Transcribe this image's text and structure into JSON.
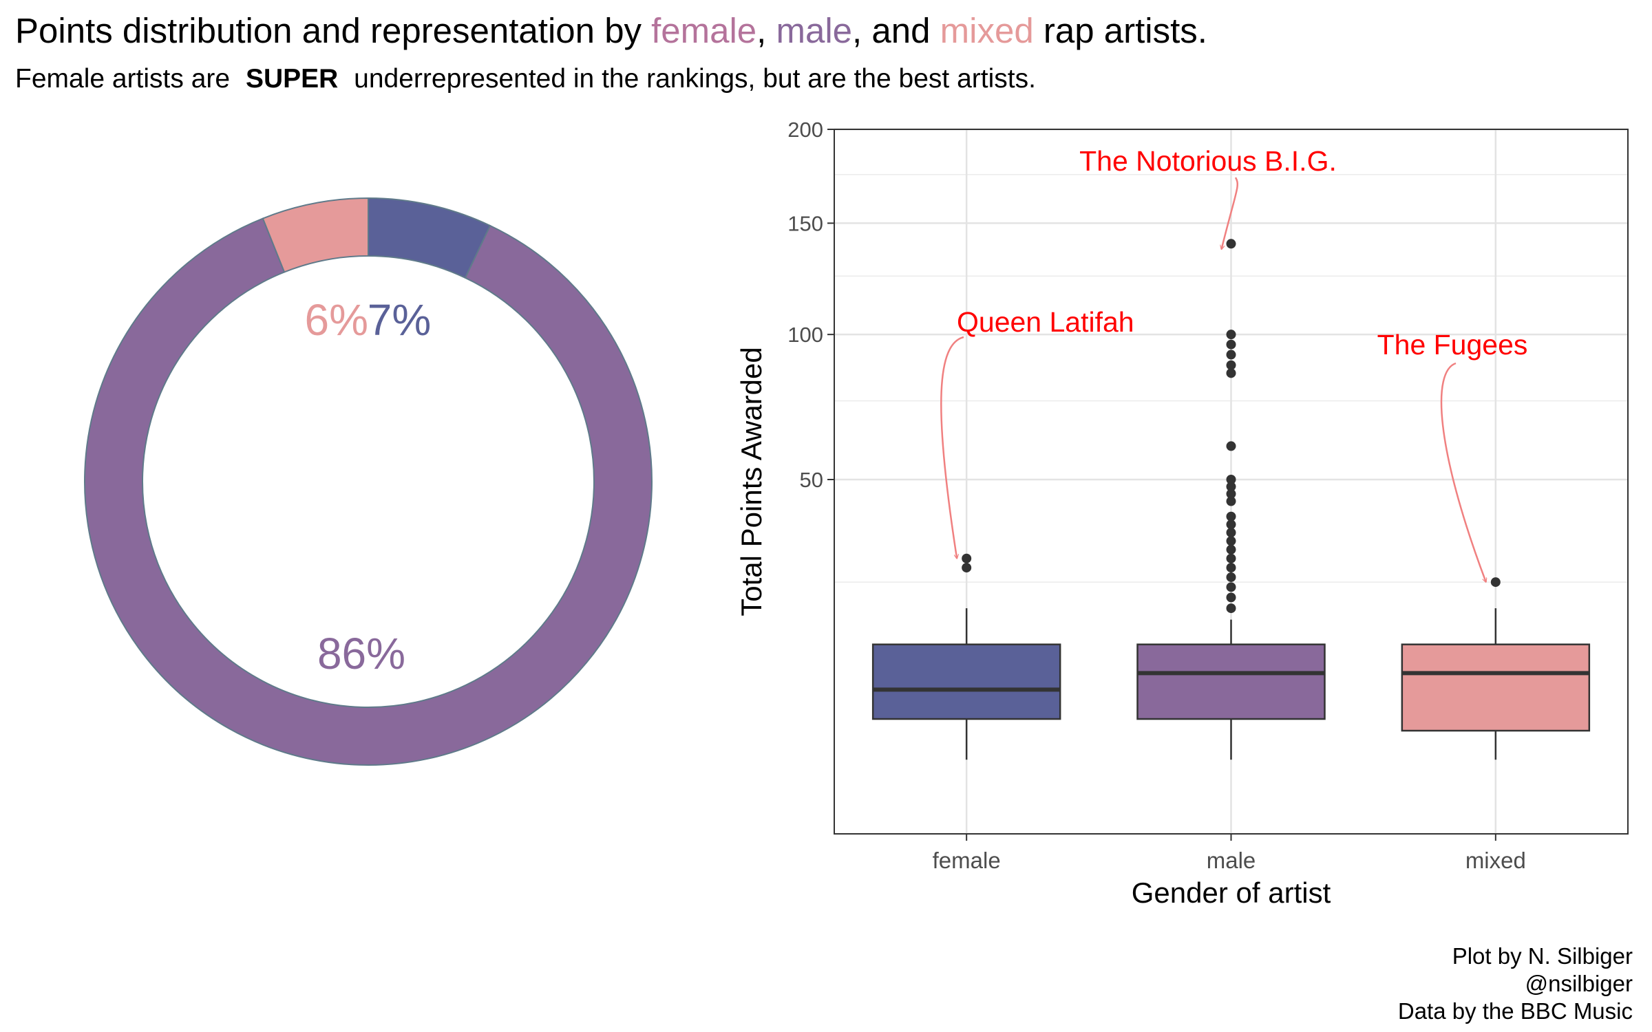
{
  "header": {
    "title_before": "Points distribution and representation by",
    "female_word": "female",
    "comma_1": ",",
    "male_word": "male",
    "and_text": ", and",
    "mixed_word": "mixed",
    "title_after": "rap artists.",
    "subtitle_before": "Female artists are",
    "subtitle_emph": "SUPER",
    "subtitle_after": "underrepresented in the rankings, but are the best artists."
  },
  "colors": {
    "female": "#5a6198",
    "male": "#89699b",
    "mixed": "#e59a9a",
    "title_female": "#b4739b",
    "annotation": "#ff0000",
    "annotation_arrow": "#f08080"
  },
  "caption": {
    "line1": "Plot by N. Silbiger",
    "line2": "@nsilbiger",
    "line3": "Data by the BBC Music"
  },
  "chart_data": [
    {
      "type": "pie",
      "style": "donut",
      "labels": [
        "female",
        "male",
        "mixed"
      ],
      "values": [
        7,
        86,
        6
      ],
      "value_labels": [
        "7%",
        "86%",
        "6%"
      ]
    },
    {
      "type": "box",
      "xlabel": "Gender of artist",
      "ylabel": "Total Points Awarded",
      "y_scale": "sqrt",
      "ylim": [
        0,
        200
      ],
      "yticks": [
        50,
        100,
        150,
        200
      ],
      "y_minor_gridlines": [
        25,
        75,
        125,
        175
      ],
      "categories": [
        "female",
        "male",
        "mixed"
      ],
      "boxes": [
        {
          "category": "female",
          "whisker_low": 2,
          "q1": 5,
          "median": 8,
          "q3": 14,
          "whisker_high": 20,
          "outliers": [
            28,
            30
          ]
        },
        {
          "category": "male",
          "whisker_low": 2,
          "q1": 5,
          "median": 10,
          "q3": 14,
          "whisker_high": 18,
          "outliers": [
            20,
            22,
            24,
            26,
            28,
            30,
            32,
            34,
            36,
            38,
            40,
            44,
            46,
            48,
            50,
            60,
            85,
            88,
            92,
            96,
            100,
            140
          ]
        },
        {
          "category": "mixed",
          "whisker_low": 2,
          "q1": 4,
          "median": 10,
          "q3": 14,
          "whisker_high": 20,
          "outliers": [
            25
          ]
        }
      ],
      "annotations": [
        {
          "text": "Queen Latifah",
          "category": "female",
          "y": 30
        },
        {
          "text": "The Notorious B.I.G.",
          "category": "male",
          "y": 140
        },
        {
          "text": "The Fugees",
          "category": "mixed",
          "y": 25
        }
      ]
    }
  ]
}
